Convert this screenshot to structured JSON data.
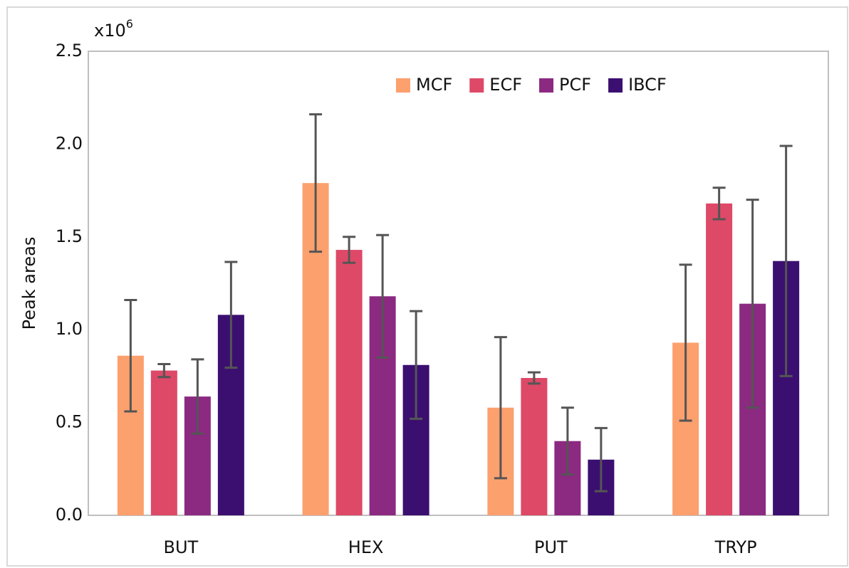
{
  "chart_data": {
    "type": "bar",
    "y_label": "Peak areas",
    "axis_multiplier": {
      "base": "x10",
      "exponent": "6"
    },
    "categories": [
      "BUT",
      "HEX",
      "PUT",
      "TRYP"
    ],
    "series": [
      {
        "name": "MCF",
        "color": "#fca06e",
        "values": [
          0.86,
          1.79,
          0.58,
          0.93
        ],
        "errors": [
          0.3,
          0.37,
          0.38,
          0.42
        ]
      },
      {
        "name": "ECF",
        "color": "#de4968",
        "values": [
          0.78,
          1.43,
          0.74,
          1.68
        ],
        "errors": [
          0.035,
          0.07,
          0.03,
          0.085
        ]
      },
      {
        "name": "PCF",
        "color": "#8c2981",
        "values": [
          0.64,
          1.18,
          0.4,
          1.14
        ],
        "errors": [
          0.2,
          0.33,
          0.18,
          0.56
        ]
      },
      {
        "name": "IBCF",
        "color": "#3b0f70",
        "values": [
          1.08,
          0.81,
          0.3,
          1.37
        ],
        "errors": [
          0.285,
          0.29,
          0.17,
          0.62
        ]
      }
    ],
    "ylim": [
      0,
      2.5
    ],
    "yticks": [
      {
        "value": 0,
        "label": "0.0"
      },
      0.5,
      {
        "value": 1,
        "label": "1.0"
      },
      1.5,
      {
        "value": 2,
        "label": "2.0"
      },
      2.5
    ],
    "grid": false,
    "legend_position": "top",
    "error_bar_color": "#555555"
  }
}
